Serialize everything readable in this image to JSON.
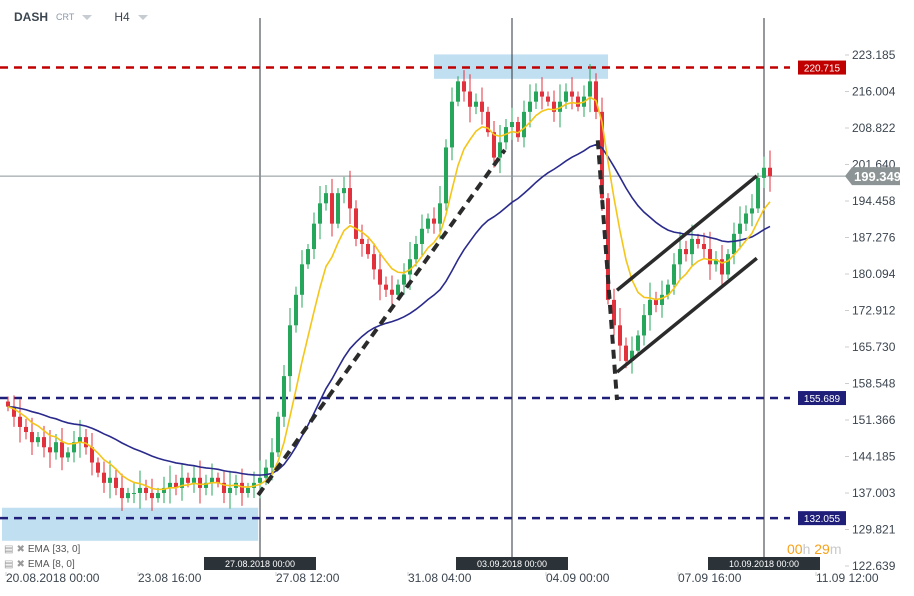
{
  "header": {
    "symbol": "DASH",
    "market": "CRT",
    "timeframe": "H4"
  },
  "indicators": [
    {
      "label": "EMA",
      "params": "[33, 0]"
    },
    {
      "label": "EMA",
      "params": "[8, 0]"
    }
  ],
  "timer": {
    "hours": "00",
    "h": "h",
    "minutes": "29",
    "m": "m"
  },
  "colors": {
    "up": "#26a65b",
    "down": "#e0313c",
    "ema8": "#f5c518",
    "ema33": "#2a2a8c",
    "resistance": "#c00000",
    "support": "#1f1f7a",
    "zone": "#b9dcef",
    "last_price": "#8c9496"
  },
  "chart_data": {
    "type": "candlestick",
    "timeframe": "H4",
    "ylim": [
      122.639,
      223.185
    ],
    "grid": false,
    "y_ticks": [
      "223.185",
      "216.004",
      "208.822",
      "201.640",
      "194.458",
      "187.276",
      "180.094",
      "172.912",
      "165.730",
      "158.548",
      "151.366",
      "144.185",
      "137.003",
      "129.821",
      "122.639"
    ],
    "x_ticks": [
      {
        "bar": 0,
        "label": "20.08.2018  00:00"
      },
      {
        "bar": 22,
        "label": "23.08  16:00"
      },
      {
        "bar": 45,
        "label": "27.08  12:00"
      },
      {
        "bar": 67,
        "label": "31.08  04:00"
      },
      {
        "bar": 90,
        "label": "04.09  00:00"
      },
      {
        "bar": 112,
        "label": "07.09  16:00"
      },
      {
        "bar": 135,
        "label": "11.09  12:00"
      }
    ],
    "vertical_markers": [
      {
        "bar": 42,
        "label": "27.08.2018 00:00"
      },
      {
        "bar": 84,
        "label": "03.09.2018 00:00"
      },
      {
        "bar": 126,
        "label": "10.09.2018 00:00"
      }
    ],
    "closes": [
      154,
      152,
      150,
      149,
      147,
      148,
      146,
      145,
      147,
      144,
      145,
      147,
      148,
      146,
      143,
      141,
      139,
      140,
      138,
      136,
      137,
      137,
      138,
      137,
      136,
      137,
      138,
      139,
      138,
      140,
      139,
      140,
      138,
      139,
      140,
      139,
      137,
      138,
      139,
      137,
      138,
      139,
      140,
      142,
      145,
      152,
      160,
      170,
      176,
      182,
      185,
      190,
      194,
      196,
      190,
      196,
      197,
      193,
      187,
      186,
      184,
      181,
      178,
      177,
      176,
      178,
      180,
      183,
      186,
      189,
      191,
      190,
      194,
      205,
      214,
      218,
      216,
      213,
      214,
      212,
      208,
      203,
      206,
      209,
      210,
      207,
      212,
      214,
      216,
      215,
      214,
      212,
      214,
      216,
      215,
      213,
      215,
      218,
      212,
      195,
      175,
      170,
      166,
      163,
      165,
      168,
      172,
      175,
      174,
      176,
      178,
      182,
      185,
      184,
      187,
      186,
      185,
      182,
      183,
      180,
      184,
      188,
      190,
      192,
      193,
      199,
      201,
      199.349
    ],
    "ema_periods": [
      33,
      8
    ],
    "levels": [
      {
        "price": 220.715,
        "label": "220.715",
        "kind": "resistance"
      },
      {
        "price": 155.689,
        "label": "155.689",
        "kind": "support"
      },
      {
        "price": 132.055,
        "label": "132.055",
        "kind": "support"
      }
    ],
    "last_price": {
      "price": 199.349,
      "label": "199.349"
    },
    "zones": [
      {
        "bar_from": 71,
        "bar_to": 100,
        "price_from": 218.5,
        "price_to": 223.3
      },
      {
        "bar_from": -1,
        "bar_to": 41.7,
        "price_from": 127.6,
        "price_to": 134.1
      }
    ],
    "trendlines": [
      {
        "style": "dashed",
        "from": [
          41.7,
          136.6
        ],
        "to": [
          82.8,
          204.5
        ]
      },
      {
        "style": "dashed",
        "from": [
          98.3,
          206.4
        ],
        "to": [
          101.5,
          155.3
        ]
      },
      {
        "style": "solid",
        "from": [
          101.5,
          176.9
        ],
        "to": [
          124.8,
          199.4
        ]
      },
      {
        "style": "solid",
        "from": [
          101.5,
          160.8
        ],
        "to": [
          124.8,
          183.2
        ]
      }
    ]
  }
}
